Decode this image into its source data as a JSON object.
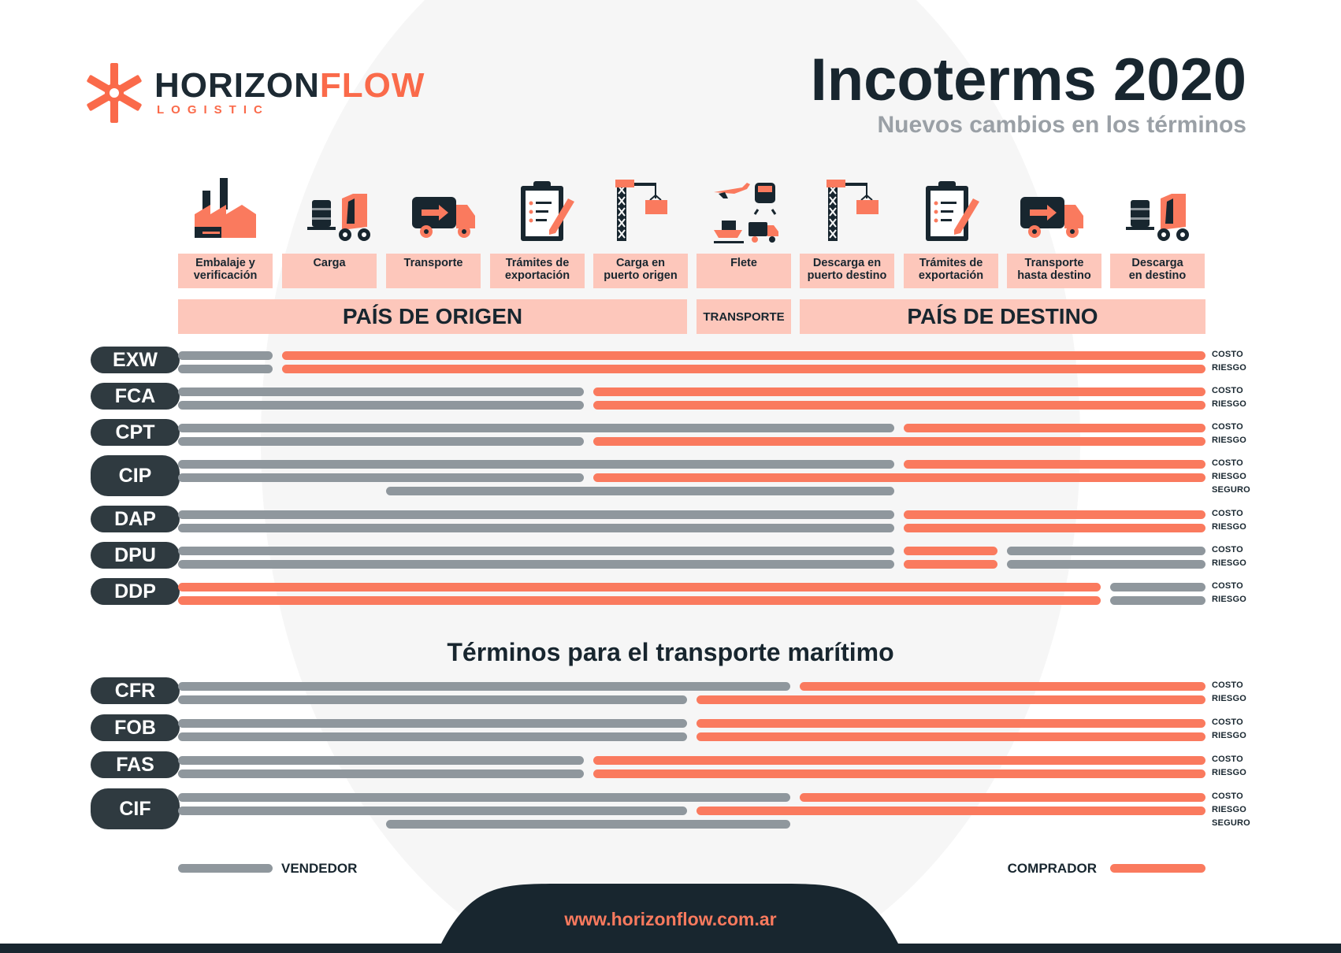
{
  "brand": {
    "name_dark": "HORIZON",
    "name_orange": "FLOW",
    "tagline": "LOGISTIC"
  },
  "header": {
    "title": "Incoterms 2020",
    "subtitle": "Nuevos cambios en los términos"
  },
  "steps": [
    "Embalaje y\nverificación",
    "Carga",
    "Transporte",
    "Trámites de\nexportación",
    "Carga en\npuerto origen",
    "Flete",
    "Descarga en\npuerto destino",
    "Trámites de\nexportación",
    "Transporte\nhasta destino",
    "Descarga\nen destino"
  ],
  "regions": {
    "origen": "PAÍS DE ORIGEN",
    "transporte": "TRANSPORTE",
    "destino": "PAÍS DE DESTINO"
  },
  "labels": {
    "costo": "COSTO",
    "riesgo": "RIESGO",
    "seguro": "SEGURO"
  },
  "section_title": "Términos para el transporte marítimo",
  "legend": {
    "seller": "VENDEDOR",
    "buyer": "COMPRADOR"
  },
  "footer": {
    "url": "www.horizonflow.com.ar"
  },
  "colors": {
    "seller": "#8f979d",
    "buyer": "#fa7a5e",
    "dark": "#18262f",
    "band": "#fdc7bb"
  },
  "icons": [
    "factory-icon",
    "forklift-icon",
    "truck-icon",
    "clipboard-icon",
    "crane-icon",
    "multimodal-icon",
    "crane-icon",
    "clipboard-icon",
    "truck-icon",
    "forklift-icon"
  ],
  "terms": [
    {
      "code": "EXW",
      "group": "general",
      "lines": [
        {
          "kind": "costo",
          "split_step": 1,
          "pattern": "seller-buyer"
        },
        {
          "kind": "riesgo",
          "split_step": 1,
          "pattern": "seller-buyer"
        }
      ]
    },
    {
      "code": "FCA",
      "group": "general",
      "lines": [
        {
          "kind": "costo",
          "split_step": 4,
          "pattern": "seller-buyer"
        },
        {
          "kind": "riesgo",
          "split_step": 4,
          "pattern": "seller-buyer"
        }
      ]
    },
    {
      "code": "CPT",
      "group": "general",
      "lines": [
        {
          "kind": "costo",
          "split_step": 7,
          "pattern": "seller-buyer"
        },
        {
          "kind": "riesgo",
          "split_step": 4,
          "pattern": "seller-buyer"
        }
      ]
    },
    {
      "code": "CIP",
      "group": "general",
      "lines": [
        {
          "kind": "costo",
          "split_step": 7,
          "pattern": "seller-buyer"
        },
        {
          "kind": "riesgo",
          "split_step": 4,
          "pattern": "seller-buyer"
        },
        {
          "kind": "seguro",
          "from_step": 2,
          "to_step": 7,
          "pattern": "seller-range"
        }
      ]
    },
    {
      "code": "DAP",
      "group": "general",
      "lines": [
        {
          "kind": "costo",
          "split_step": 7,
          "pattern": "seller-buyer"
        },
        {
          "kind": "riesgo",
          "split_step": 7,
          "pattern": "seller-buyer"
        }
      ]
    },
    {
      "code": "DPU",
      "group": "general",
      "lines": [
        {
          "kind": "costo",
          "split_step": 7,
          "pattern": "seller-buyer-seller",
          "split2_step": 8
        },
        {
          "kind": "riesgo",
          "split_step": 7,
          "pattern": "seller-buyer-seller",
          "split2_step": 8
        }
      ]
    },
    {
      "code": "DDP",
      "group": "general",
      "lines": [
        {
          "kind": "costo",
          "split_step": 9,
          "pattern": "buyer-seller"
        },
        {
          "kind": "riesgo",
          "split_step": 9,
          "pattern": "buyer-seller"
        }
      ]
    },
    {
      "code": "CFR",
      "group": "maritime",
      "lines": [
        {
          "kind": "costo",
          "split_step": 6,
          "pattern": "seller-buyer"
        },
        {
          "kind": "riesgo",
          "split_step": 5,
          "pattern": "seller-buyer"
        }
      ]
    },
    {
      "code": "FOB",
      "group": "maritime",
      "lines": [
        {
          "kind": "costo",
          "split_step": 5,
          "pattern": "seller-buyer"
        },
        {
          "kind": "riesgo",
          "split_step": 5,
          "pattern": "seller-buyer"
        }
      ]
    },
    {
      "code": "FAS",
      "group": "maritime",
      "lines": [
        {
          "kind": "costo",
          "split_step": 4,
          "pattern": "seller-buyer"
        },
        {
          "kind": "riesgo",
          "split_step": 4,
          "pattern": "seller-buyer"
        }
      ]
    },
    {
      "code": "CIF",
      "group": "maritime",
      "lines": [
        {
          "kind": "costo",
          "split_step": 6,
          "pattern": "seller-buyer"
        },
        {
          "kind": "riesgo",
          "split_step": 5,
          "pattern": "seller-buyer"
        },
        {
          "kind": "seguro",
          "from_step": 2,
          "to_step": 6,
          "pattern": "seller-range"
        }
      ]
    }
  ]
}
